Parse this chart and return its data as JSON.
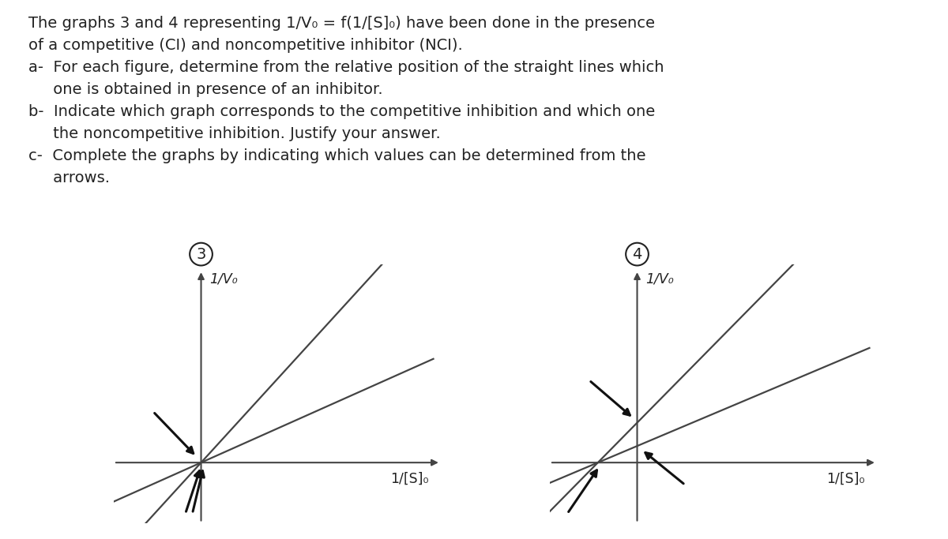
{
  "background_color": "#ffffff",
  "text_color": "#222222",
  "line_color": "#444444",
  "arrow_color": "#111111",
  "graph3_label": "3",
  "graph4_label": "4",
  "ylabel3": "1/V₀",
  "ylabel4": "1/V₀",
  "xlabel3": "1/[S]₀",
  "xlabel4": "1/[S]₀",
  "paragraph_lines": [
    "The graphs 3 and 4 representing 1/V₀ = f(1/[S]₀) have been done in the presence",
    "of a competitive (CI) and noncompetitive inhibitor (NCI).",
    "a-  For each figure, determine from the relative position of the straight lines which",
    "     one is obtained in presence of an inhibitor.",
    "b-  Indicate which graph corresponds to the competitive inhibition and which one",
    "     the noncompetitive inhibition. Justify your answer.",
    "c-  Complete the graphs by indicating which values can be determined from the",
    "     arrows."
  ],
  "figsize": [
    12.0,
    6.83
  ],
  "dpi": 100,
  "g3_slope1": 0.55,
  "g3_slope2": 1.35,
  "g3_yint": 0.0,
  "g4_xint": -0.45,
  "g4_slope1": 0.52,
  "g4_slope2": 1.25
}
